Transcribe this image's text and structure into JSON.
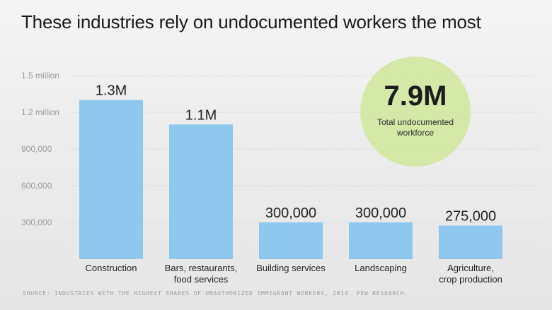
{
  "title": "These industries rely on undocumented workers the most",
  "callout": {
    "value": "7.9M",
    "label": "Total undocumented workforce",
    "color": "#d3e8a4"
  },
  "source": "Source: Industries with the highest shares of unauthorized immigrant workers, 2014. Pew Research.",
  "chart_data": {
    "type": "bar",
    "categories": [
      "Construction",
      "Bars, restaurants, food services",
      "Building services",
      "Landscaping",
      "Agriculture, crop production"
    ],
    "category_lines": [
      [
        "Construction"
      ],
      [
        "Bars, restaurants,",
        "food services"
      ],
      [
        "Building services"
      ],
      [
        "Landscaping"
      ],
      [
        "Agriculture,",
        "crop production"
      ]
    ],
    "values": [
      1300000,
      1100000,
      300000,
      300000,
      275000
    ],
    "data_labels": [
      "1.3M",
      "1.1M",
      "300,000",
      "300,000",
      "275,000"
    ],
    "yticks": [
      300000,
      600000,
      900000,
      1200000,
      1500000
    ],
    "ytick_labels": [
      "300,000",
      "600,000",
      "900,000",
      "1.2 million",
      "1.5 million"
    ],
    "ylim": [
      0,
      1500000
    ],
    "grid": true,
    "bar_color": "#8ec8ef"
  }
}
